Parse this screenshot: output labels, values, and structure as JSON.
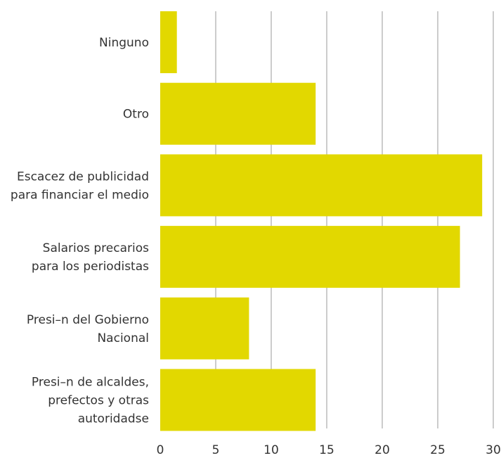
{
  "chart_data": {
    "type": "bar",
    "orientation": "horizontal",
    "categories": [
      [
        "Ninguno"
      ],
      [
        "Otro"
      ],
      [
        "Escacez de publicidad",
        "para financiar el medio"
      ],
      [
        "Salarios precarios",
        "para los periodistas"
      ],
      [
        "Presi–n del Gobierno",
        "Nacional"
      ],
      [
        "Presi–n de alcaldes,",
        "prefectos y otras",
        "autoridadse"
      ]
    ],
    "values": [
      1.5,
      14,
      29,
      27,
      8,
      14
    ],
    "xticks": [
      "0",
      "5",
      "10",
      "15",
      "20",
      "25",
      "30"
    ],
    "xlim": [
      0,
      30
    ],
    "grid": "vertical",
    "legend": "none",
    "title": "",
    "xlabel": "",
    "ylabel": "",
    "colors": {
      "bar": "#e2d800",
      "grid": "#9a9a9a",
      "text": "#333333"
    }
  }
}
